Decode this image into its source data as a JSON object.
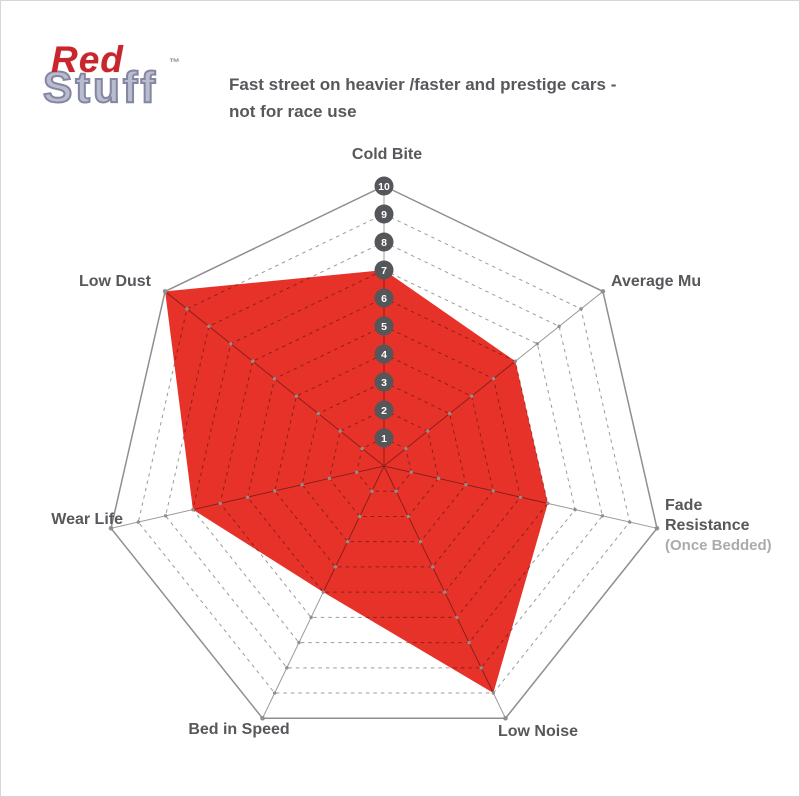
{
  "logo": {
    "part1": "Red",
    "part2": "Stuff",
    "trademark": "™"
  },
  "subtitle": {
    "line1": "Fast street on heavier /faster and prestige cars -",
    "line2": "not for race use"
  },
  "chart_data": {
    "type": "radar",
    "title": "",
    "axes": [
      {
        "label": "Cold Bite",
        "value": 7
      },
      {
        "label": "Average Mu",
        "value": 6
      },
      {
        "label": "Fade Resistance",
        "sublabel": "(Once Bedded)",
        "value": 6
      },
      {
        "label": "Low Noise",
        "value": 9
      },
      {
        "label": "Bed in Speed",
        "value": 5
      },
      {
        "label": "Wear Life",
        "value": 7
      },
      {
        "label": "Low Dust",
        "value": 10
      }
    ],
    "scale": {
      "min": 1,
      "max": 10,
      "tick_labels": [
        "1",
        "2",
        "3",
        "4",
        "5",
        "6",
        "7",
        "8",
        "9",
        "10"
      ]
    },
    "legend": "none",
    "grid": "dashed-rings",
    "colors": {
      "fill": "#e73229",
      "grid": "#9b9b9b",
      "outer_ring": "#8f8f8f",
      "tick_circle": "#54565a",
      "tick_text": "#ffffff",
      "label": "#57585b",
      "sublabel": "#a9abae"
    }
  }
}
